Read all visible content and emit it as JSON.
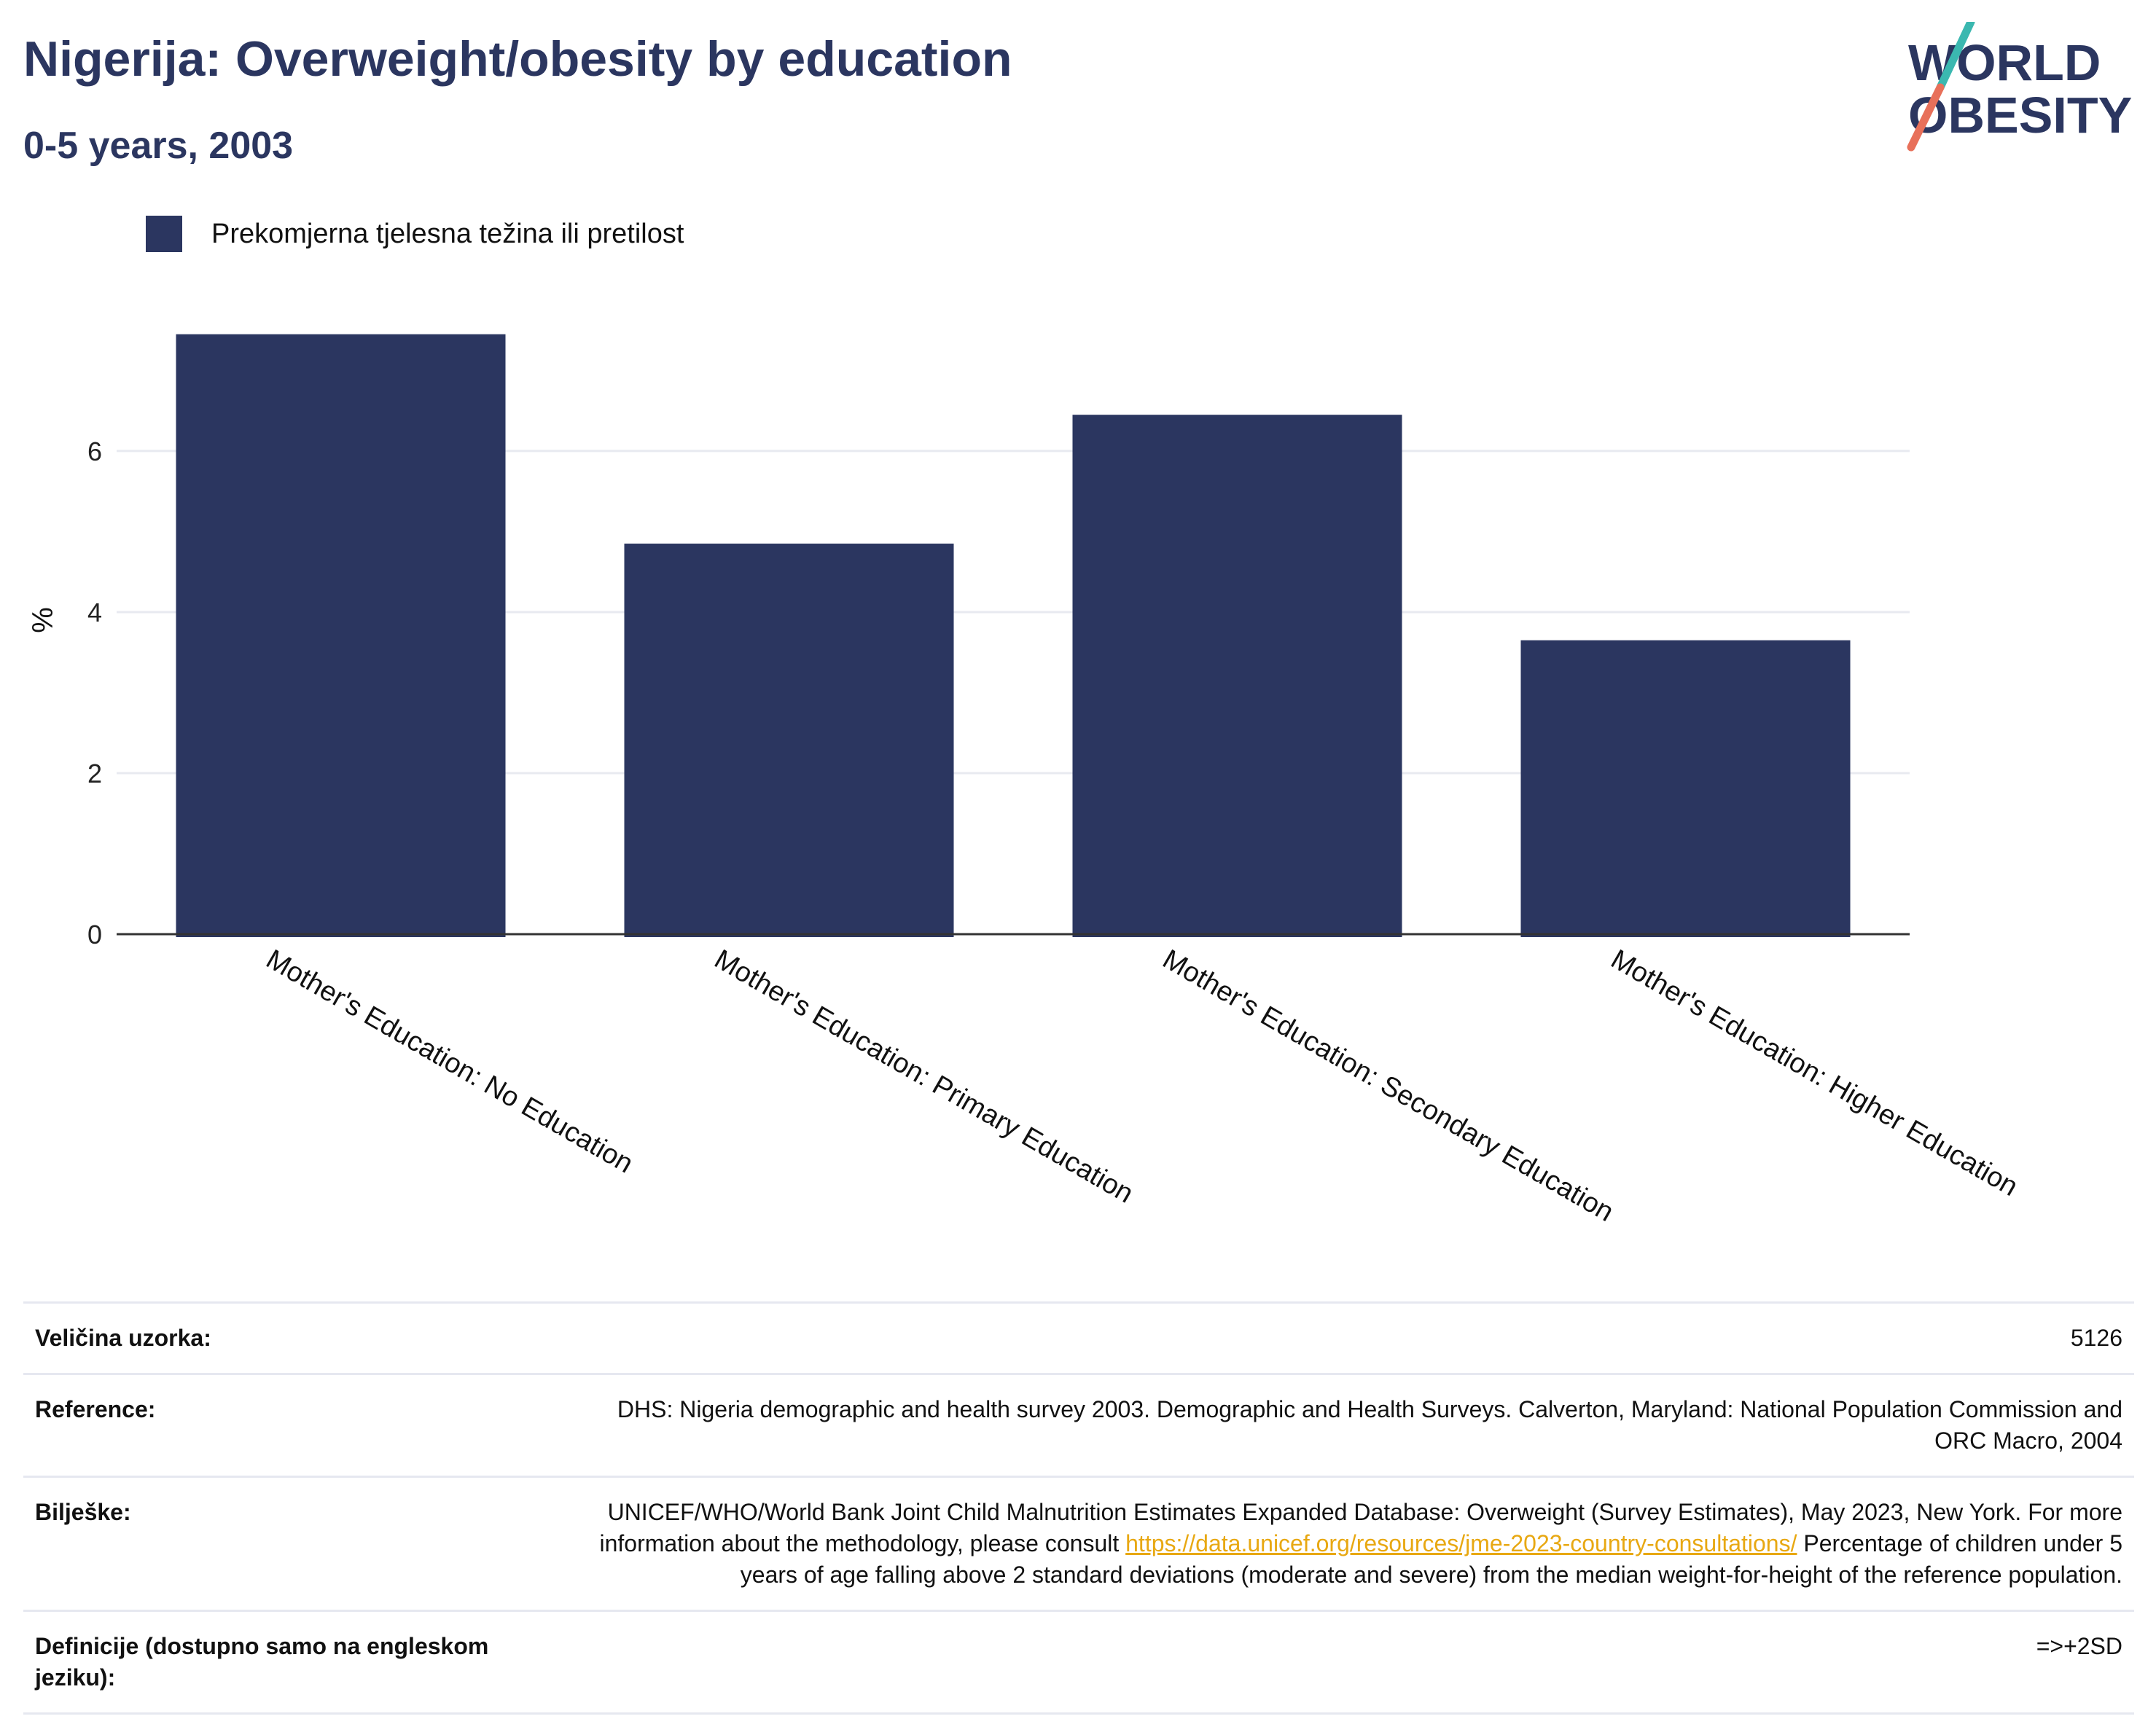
{
  "header": {
    "title": "Nigerija: Overweight/obesity by education",
    "subtitle": "0-5 years, 2003"
  },
  "logo": {
    "line1": "WORLD",
    "line2": "OBESITY"
  },
  "legend": {
    "label": "Prekomjerna tjelesna težina ili pretilost"
  },
  "colors": {
    "bar": "#2b3660",
    "grid": "#e8eaf0",
    "axis": "#333333",
    "link": "#e8a812",
    "logo_teal": "#3bb8b0",
    "logo_coral": "#e8705a"
  },
  "chart_data": {
    "type": "bar",
    "categories": [
      "Mother's Education: No Education",
      "Mother's Education: Primary Education",
      "Mother's Education: Secondary Education",
      "Mother's Education: Higher Education"
    ],
    "series": [
      {
        "name": "Prekomjerna tjelesna težina ili pretilost",
        "values": [
          7.45,
          4.85,
          6.45,
          3.65
        ]
      }
    ],
    "ylabel": "%",
    "xlabel": "",
    "ylim": [
      0,
      7.8
    ],
    "yticks": [
      0,
      2,
      4,
      6
    ],
    "grid": true
  },
  "info": {
    "sample_label": "Veličina uzorka:",
    "sample_value": "5126",
    "reference_label": "Reference:",
    "reference_value": "DHS: Nigeria demographic and health survey 2003. Demographic and Health Surveys. Calverton, Maryland: National Population Commission and ORC Macro, 2004",
    "notes_label": "Bilješke:",
    "notes_pre": "UNICEF/WHO/World Bank Joint Child Malnutrition Estimates Expanded Database: Overweight (Survey Estimates), May 2023, New York. For more information about the methodology, please consult ",
    "notes_link": "https://data.unicef.org/resources/jme-2023-country-consultations/",
    "notes_post": " Percentage of children under 5 years of age falling above 2 standard deviations (moderate and severe) from the median weight-for-height of the reference population.",
    "definitions_label": "Definicije (dostupno samo na engleskom jeziku):",
    "definitions_value": "=>+2SD"
  }
}
